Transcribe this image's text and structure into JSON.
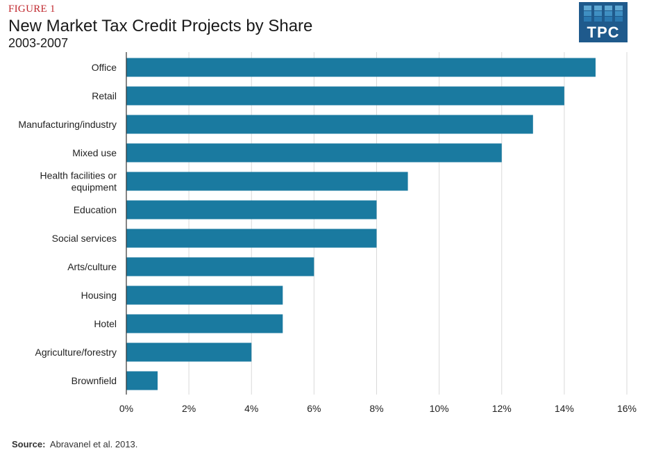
{
  "figure_label": "FIGURE 1",
  "chart_data": {
    "type": "bar",
    "orientation": "horizontal",
    "title": "New Market Tax Credit Projects by Share",
    "subtitle": "2003-2007",
    "categories": [
      [
        "Office"
      ],
      [
        "Retail"
      ],
      [
        "Manufacturing/industry"
      ],
      [
        "Mixed use"
      ],
      [
        "Health facilities or",
        "equipment"
      ],
      [
        "Education"
      ],
      [
        "Social services"
      ],
      [
        "Arts/culture"
      ],
      [
        "Housing"
      ],
      [
        "Hotel"
      ],
      [
        "Agriculture/forestry"
      ],
      [
        "Brownfield"
      ]
    ],
    "values": [
      15,
      14,
      13,
      12,
      9,
      8,
      8,
      6,
      5,
      5,
      4,
      1
    ],
    "xlim": [
      0,
      16
    ],
    "xticks": [
      0,
      2,
      4,
      6,
      8,
      10,
      12,
      14,
      16
    ],
    "tick_suffix": "%",
    "xlabel": "",
    "ylabel": "",
    "grid": true
  },
  "logo": {
    "text": "TPC",
    "color": "#1f5a8c",
    "cell_colors": [
      "#5fa8d3",
      "#3f8fc2",
      "#2a78b0"
    ]
  },
  "colors": {
    "bar": "#1a7aa0",
    "grid": "#d9d9d9",
    "axis": "#333333",
    "label": "#222222"
  },
  "source": {
    "label": "Source:",
    "text": "Abravanel et al. 2013."
  }
}
